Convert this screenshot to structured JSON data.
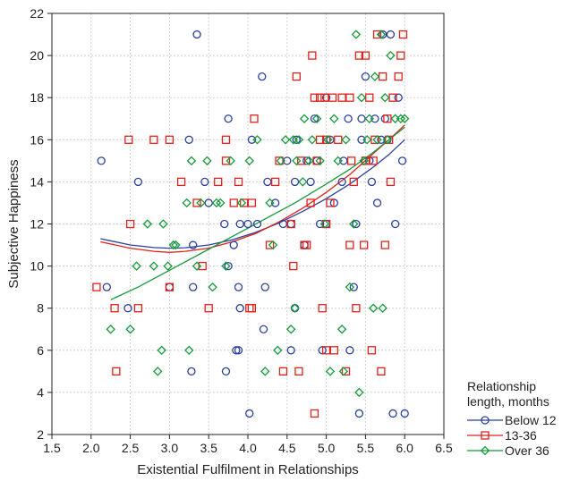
{
  "chart_data": {
    "type": "scatter",
    "xlabel": "Existential Fulfilment in Relationships",
    "ylabel": "Subjective Happiness",
    "xlim": [
      1.5,
      6.5
    ],
    "ylim": [
      2,
      22
    ],
    "xticks": [
      "1.5",
      "2.0",
      "2.5",
      "3.0",
      "3.5",
      "4.0",
      "4.5",
      "5.0",
      "5.5",
      "6.0",
      "6.5"
    ],
    "yticks": [
      "2",
      "4",
      "6",
      "8",
      "10",
      "12",
      "14",
      "16",
      "18",
      "20",
      "22"
    ],
    "grid": true,
    "legend": {
      "title": "Relationship\nlength, months",
      "placement": "right, outside plot area, bottom"
    },
    "series": [
      {
        "name": "Below 12",
        "color": "#2b3f9e",
        "marker": "circle",
        "points": [
          [
            2.13,
            15
          ],
          [
            2.2,
            9
          ],
          [
            2.47,
            8
          ],
          [
            2.6,
            14
          ],
          [
            3.0,
            9
          ],
          [
            3.25,
            16
          ],
          [
            3.3,
            11
          ],
          [
            3.35,
            21
          ],
          [
            3.3,
            9
          ],
          [
            3.28,
            5
          ],
          [
            3.45,
            14
          ],
          [
            3.5,
            13
          ],
          [
            3.7,
            12
          ],
          [
            3.72,
            5
          ],
          [
            3.75,
            17
          ],
          [
            3.75,
            10
          ],
          [
            3.82,
            11
          ],
          [
            3.85,
            6
          ],
          [
            3.88,
            6
          ],
          [
            3.9,
            12
          ],
          [
            3.9,
            8
          ],
          [
            3.88,
            9
          ],
          [
            4.0,
            12
          ],
          [
            4.02,
            3
          ],
          [
            4.05,
            16
          ],
          [
            4.12,
            12
          ],
          [
            4.18,
            19
          ],
          [
            4.2,
            7
          ],
          [
            4.22,
            9
          ],
          [
            4.25,
            14
          ],
          [
            4.35,
            13
          ],
          [
            4.45,
            12
          ],
          [
            4.5,
            15
          ],
          [
            4.55,
            6
          ],
          [
            4.55,
            12
          ],
          [
            4.6,
            8
          ],
          [
            4.6,
            14
          ],
          [
            4.62,
            16
          ],
          [
            4.72,
            11
          ],
          [
            4.75,
            15
          ],
          [
            4.8,
            14
          ],
          [
            4.85,
            17
          ],
          [
            4.88,
            15
          ],
          [
            4.92,
            12
          ],
          [
            4.95,
            6
          ],
          [
            5.0,
            12
          ],
          [
            5.0,
            18
          ],
          [
            5.05,
            16
          ],
          [
            5.1,
            13
          ],
          [
            5.2,
            14
          ],
          [
            5.22,
            15
          ],
          [
            5.28,
            17
          ],
          [
            5.3,
            6
          ],
          [
            5.35,
            9
          ],
          [
            5.38,
            12
          ],
          [
            5.42,
            3
          ],
          [
            5.45,
            16
          ],
          [
            5.45,
            17
          ],
          [
            5.5,
            19
          ],
          [
            5.55,
            15
          ],
          [
            5.58,
            14
          ],
          [
            5.62,
            17
          ],
          [
            5.65,
            13
          ],
          [
            5.7,
            16
          ],
          [
            5.72,
            21
          ],
          [
            5.75,
            17
          ],
          [
            5.78,
            16
          ],
          [
            5.82,
            21
          ],
          [
            5.85,
            3
          ],
          [
            5.88,
            12
          ],
          [
            5.92,
            18
          ],
          [
            5.97,
            15
          ],
          [
            6.0,
            3
          ]
        ]
      },
      {
        "name": "13-36",
        "color": "#e0221c",
        "marker": "square",
        "points": [
          [
            2.07,
            9
          ],
          [
            2.3,
            8
          ],
          [
            2.32,
            5
          ],
          [
            2.48,
            16
          ],
          [
            2.5,
            12
          ],
          [
            2.6,
            8
          ],
          [
            2.8,
            16
          ],
          [
            3.0,
            9
          ],
          [
            3.0,
            16
          ],
          [
            3.15,
            14
          ],
          [
            3.35,
            13
          ],
          [
            3.42,
            10
          ],
          [
            3.5,
            8
          ],
          [
            3.62,
            14
          ],
          [
            3.72,
            16
          ],
          [
            3.72,
            15
          ],
          [
            3.82,
            13
          ],
          [
            3.88,
            14
          ],
          [
            3.95,
            13
          ],
          [
            4.02,
            8
          ],
          [
            4.05,
            8
          ],
          [
            4.05,
            13
          ],
          [
            4.08,
            17
          ],
          [
            4.28,
            11
          ],
          [
            4.35,
            14
          ],
          [
            4.4,
            15
          ],
          [
            4.45,
            5
          ],
          [
            4.55,
            12
          ],
          [
            4.58,
            10
          ],
          [
            4.62,
            19
          ],
          [
            4.65,
            5
          ],
          [
            4.68,
            15
          ],
          [
            4.72,
            11
          ],
          [
            4.75,
            11
          ],
          [
            4.8,
            13
          ],
          [
            4.82,
            20
          ],
          [
            4.85,
            3
          ],
          [
            4.85,
            18
          ],
          [
            4.88,
            15
          ],
          [
            4.92,
            16
          ],
          [
            4.92,
            18
          ],
          [
            4.95,
            8
          ],
          [
            4.98,
            18
          ],
          [
            5.0,
            6
          ],
          [
            5.0,
            16
          ],
          [
            5.0,
            12
          ],
          [
            5.05,
            13
          ],
          [
            5.08,
            18
          ],
          [
            5.1,
            6
          ],
          [
            5.15,
            16
          ],
          [
            5.2,
            18
          ],
          [
            5.25,
            5
          ],
          [
            5.3,
            18
          ],
          [
            5.3,
            11
          ],
          [
            5.32,
            15
          ],
          [
            5.35,
            14
          ],
          [
            5.38,
            8
          ],
          [
            5.42,
            20
          ],
          [
            5.48,
            11
          ],
          [
            5.5,
            20
          ],
          [
            5.5,
            15
          ],
          [
            5.55,
            18
          ],
          [
            5.58,
            6
          ],
          [
            5.6,
            15
          ],
          [
            5.62,
            16
          ],
          [
            5.65,
            21
          ],
          [
            5.7,
            5
          ],
          [
            5.72,
            19
          ],
          [
            5.75,
            11
          ],
          [
            5.78,
            17
          ],
          [
            5.8,
            16
          ],
          [
            5.82,
            14
          ],
          [
            5.85,
            18
          ],
          [
            5.92,
            19
          ],
          [
            5.95,
            20
          ],
          [
            5.98,
            21
          ]
        ]
      },
      {
        "name": "Over 36",
        "color": "#169a3a",
        "marker": "diamond",
        "points": [
          [
            2.25,
            7
          ],
          [
            2.5,
            7
          ],
          [
            2.58,
            10
          ],
          [
            2.72,
            12
          ],
          [
            2.8,
            10
          ],
          [
            2.85,
            5
          ],
          [
            2.9,
            6
          ],
          [
            2.92,
            12
          ],
          [
            2.98,
            10
          ],
          [
            3.05,
            11
          ],
          [
            3.08,
            11
          ],
          [
            3.22,
            13
          ],
          [
            3.25,
            6
          ],
          [
            3.28,
            15
          ],
          [
            3.35,
            10
          ],
          [
            3.4,
            13
          ],
          [
            3.48,
            15
          ],
          [
            3.55,
            9
          ],
          [
            3.6,
            13
          ],
          [
            3.65,
            13
          ],
          [
            3.72,
            10
          ],
          [
            3.78,
            15
          ],
          [
            3.92,
            13
          ],
          [
            4.02,
            15
          ],
          [
            4.12,
            16
          ],
          [
            4.22,
            5
          ],
          [
            4.28,
            13
          ],
          [
            4.32,
            11
          ],
          [
            4.38,
            6
          ],
          [
            4.42,
            15
          ],
          [
            4.48,
            16
          ],
          [
            4.55,
            7
          ],
          [
            4.58,
            16
          ],
          [
            4.6,
            8
          ],
          [
            4.62,
            15
          ],
          [
            4.65,
            16
          ],
          [
            4.7,
            14
          ],
          [
            4.72,
            17
          ],
          [
            4.78,
            15
          ],
          [
            4.82,
            16
          ],
          [
            4.88,
            17
          ],
          [
            4.92,
            15
          ],
          [
            4.98,
            12
          ],
          [
            5.02,
            16
          ],
          [
            5.05,
            5
          ],
          [
            5.1,
            17
          ],
          [
            5.15,
            15
          ],
          [
            5.2,
            7
          ],
          [
            5.22,
            5
          ],
          [
            5.25,
            16
          ],
          [
            5.3,
            9
          ],
          [
            5.35,
            12
          ],
          [
            5.38,
            21
          ],
          [
            5.42,
            4
          ],
          [
            5.45,
            18
          ],
          [
            5.48,
            15
          ],
          [
            5.52,
            16
          ],
          [
            5.55,
            17
          ],
          [
            5.6,
            8
          ],
          [
            5.62,
            19
          ],
          [
            5.65,
            16
          ],
          [
            5.7,
            21
          ],
          [
            5.72,
            8
          ],
          [
            5.75,
            18
          ],
          [
            5.78,
            16
          ],
          [
            5.82,
            20
          ],
          [
            5.88,
            17
          ],
          [
            5.95,
            17
          ],
          [
            6.0,
            17
          ]
        ]
      }
    ],
    "trend_lines": [
      {
        "series": "Below 12",
        "color": "#2b3f9e",
        "x": [
          2.12,
          2.5,
          2.8,
          3.0,
          3.2,
          3.5,
          3.8,
          4.1,
          4.4,
          4.7,
          5.0,
          5.3,
          5.6,
          5.8,
          6.0
        ],
        "y": [
          11.3,
          11.0,
          10.88,
          10.85,
          10.87,
          11.0,
          11.25,
          11.6,
          12.05,
          12.6,
          13.2,
          13.9,
          14.7,
          15.3,
          16.0
        ]
      },
      {
        "series": "13-36",
        "color": "#e0221c",
        "x": [
          2.12,
          2.5,
          2.8,
          3.0,
          3.2,
          3.5,
          3.8,
          4.1,
          4.4,
          4.7,
          5.0,
          5.3,
          5.6,
          5.8,
          6.0
        ],
        "y": [
          11.15,
          10.85,
          10.7,
          10.65,
          10.7,
          10.85,
          11.15,
          11.55,
          12.1,
          12.75,
          13.5,
          14.35,
          15.35,
          16.0,
          16.7
        ]
      },
      {
        "series": "Over 36",
        "color": "#169a3a",
        "x": [
          2.25,
          2.6,
          3.0,
          3.4,
          3.8,
          4.2,
          4.6,
          5.0,
          5.3,
          5.6,
          5.8,
          6.0
        ],
        "y": [
          8.4,
          9.0,
          9.8,
          10.6,
          11.4,
          12.2,
          13.0,
          13.9,
          14.6,
          15.4,
          16.0,
          16.6
        ]
      }
    ]
  }
}
